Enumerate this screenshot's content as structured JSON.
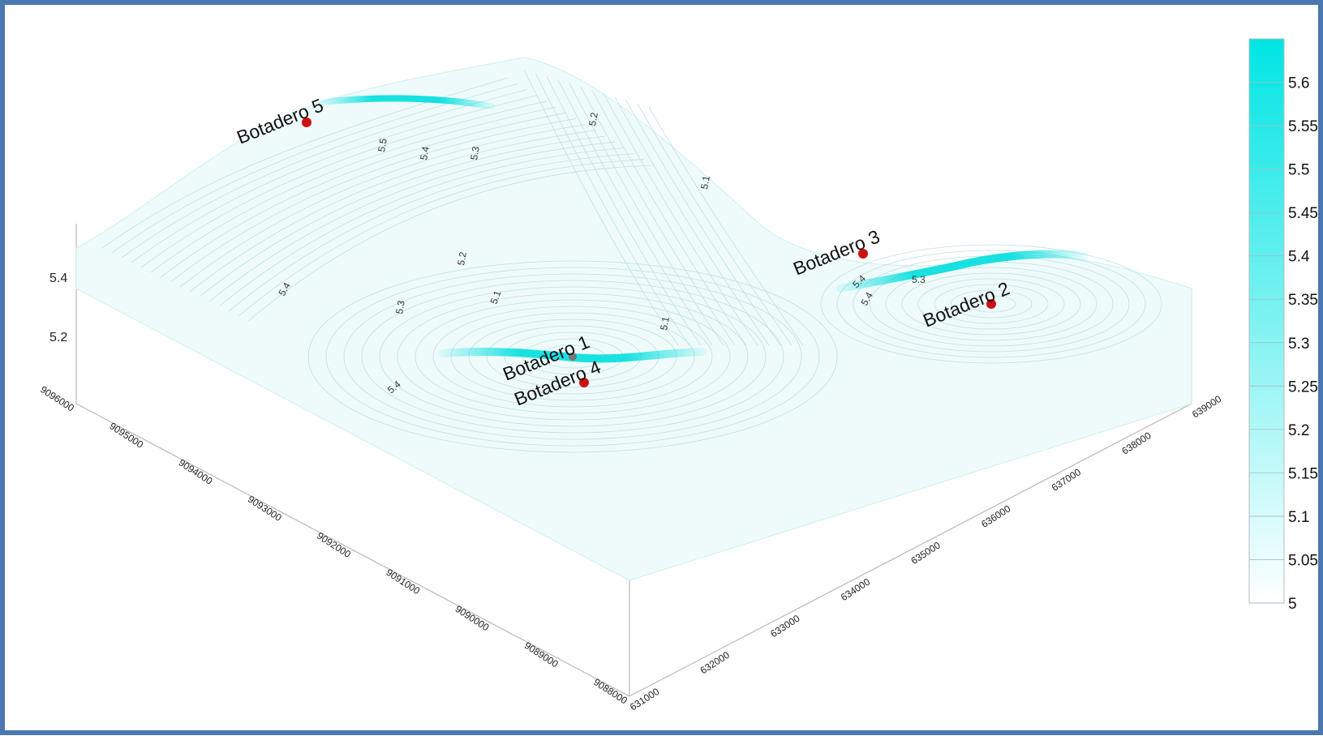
{
  "chart_data": {
    "type": "surface-3d",
    "title": "",
    "xlabel": "",
    "ylabel": "",
    "zlabel": "",
    "x_ticks": [
      "631000",
      "632000",
      "633000",
      "634000",
      "635000",
      "636000",
      "637000",
      "638000",
      "639000"
    ],
    "y_ticks": [
      "9088000",
      "9089000",
      "9090000",
      "9091000",
      "9092000",
      "9093000",
      "9094000",
      "9095000",
      "9096000"
    ],
    "z_ticks": [
      "5.2",
      "5.4"
    ],
    "colorbar": {
      "ticks": [
        "5",
        "5.05",
        "5.1",
        "5.15",
        "5.2",
        "5.25",
        "5.3",
        "5.35",
        "5.4",
        "5.45",
        "5.5",
        "5.55",
        "5.6"
      ],
      "range": [
        5,
        5.65
      ],
      "color_low": "#ffffff",
      "color_high": "#00e5e5"
    },
    "contour_labels": [
      "5.5",
      "5.4",
      "5.3",
      "5.2",
      "5.1",
      "5.2",
      "5.4",
      "5.3",
      "5.1",
      "5.4",
      "5.1",
      "5.4",
      "5.3",
      "5.4"
    ],
    "points": [
      {
        "label": "Botadero 5",
        "color": "#cc1111"
      },
      {
        "label": "Botadero 3",
        "color": "#cc1111"
      },
      {
        "label": "Botadero 2",
        "color": "#cc1111"
      },
      {
        "label": "Botadero 1",
        "color": "#cc1111"
      },
      {
        "label": "Botadero 4",
        "color": "#cc1111"
      }
    ]
  }
}
